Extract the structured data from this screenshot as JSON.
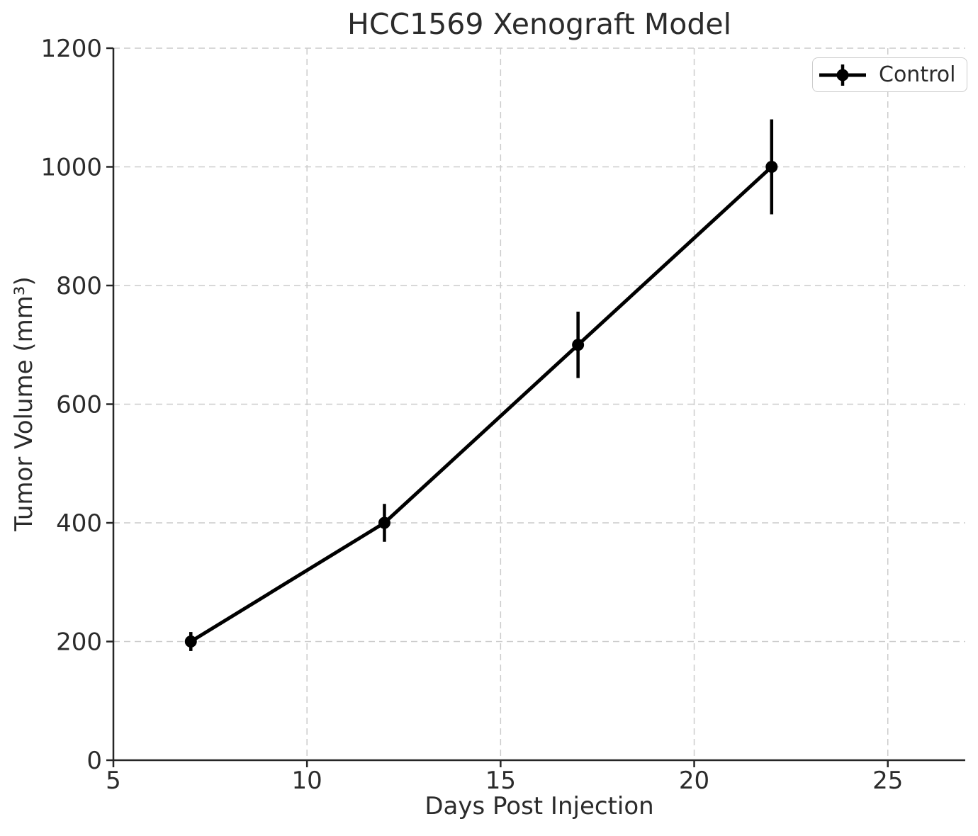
{
  "chart_data": {
    "type": "line",
    "title": "HCC1569 Xenograft Model",
    "xlabel": "Days Post Injection",
    "ylabel": "Tumor Volume (mm³)",
    "xlim": [
      5,
      27
    ],
    "ylim": [
      0,
      1200
    ],
    "xticks": [
      "5",
      "10",
      "15",
      "20",
      "25"
    ],
    "xtick_values": [
      5,
      10,
      15,
      20,
      25
    ],
    "yticks": [
      "0",
      "200",
      "400",
      "600",
      "800",
      "1000",
      "1200"
    ],
    "ytick_values": [
      0,
      200,
      400,
      600,
      800,
      1000,
      1200
    ],
    "grid": true,
    "grid_style": "dashed",
    "legend_position": "upper right",
    "series": [
      {
        "name": "Control",
        "x": [
          7,
          12,
          17,
          22
        ],
        "y": [
          200,
          400,
          700,
          1000
        ],
        "yerr": [
          16,
          32,
          56,
          80
        ],
        "marker": "circle",
        "color": "#000000"
      }
    ]
  },
  "colors": {
    "series_line": "#000000",
    "text": "#2b2b2b",
    "spine": "#262626",
    "grid": "#cccccc",
    "legend_border": "#cccccc",
    "background": "#ffffff"
  }
}
